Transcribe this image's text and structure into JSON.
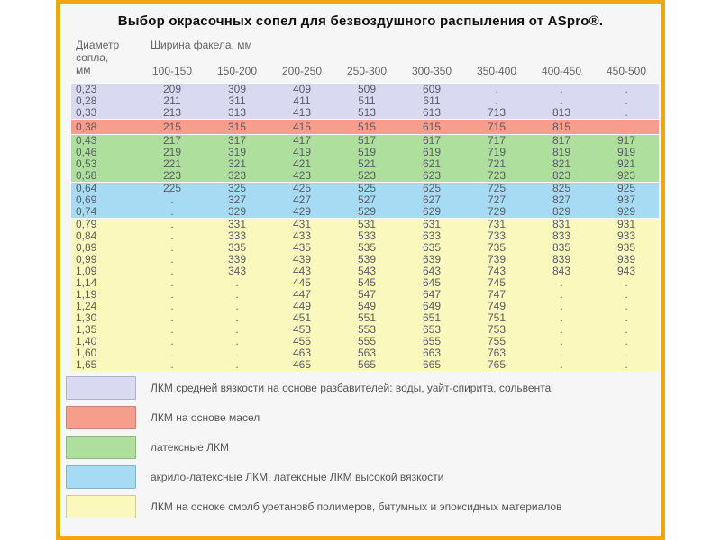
{
  "title": "Выбор окрасочных сопел для безвоздушного распыления от ASpro®.",
  "table": {
    "corner_header": "Диаметр\nсопла,\nмм",
    "group_header": "Ширина факела, мм"
  },
  "chart_data": {
    "type": "table",
    "title": "Выбор окрасочных сопел для безвоздушного распыления от ASpro®.",
    "row_header_label": "Диаметр сопла, мм",
    "column_group_label": "Ширина факела, мм",
    "columns": [
      "100-150",
      "150-200",
      "200-250",
      "250-300",
      "300-350",
      "350-400",
      "400-450",
      "450-500"
    ],
    "sections": [
      {
        "name": "medium-viscosity",
        "color": "#d9daf2",
        "rows": [
          {
            "d": "0,23",
            "v": [
              "209",
              "309",
              "409",
              "509",
              "609",
              ".",
              ".",
              "."
            ]
          },
          {
            "d": "0,28",
            "v": [
              "211",
              "311",
              "411",
              "511",
              "611",
              ".",
              ".",
              "."
            ]
          },
          {
            "d": "0,33",
            "v": [
              "213",
              "313",
              "413",
              "513",
              "613",
              "713",
              "813",
              "."
            ]
          }
        ]
      },
      {
        "name": "oil-based",
        "color": "#f79d8c",
        "rows": [
          {
            "d": "0,38",
            "v": [
              "215",
              "315",
              "415",
              "515",
              "615",
              "715",
              "815",
              ""
            ]
          }
        ]
      },
      {
        "name": "latex",
        "color": "#aedf9c",
        "rows": [
          {
            "d": "0,43",
            "v": [
              "217",
              "317",
              "417",
              "517",
              "617",
              "717",
              "817",
              "917"
            ]
          },
          {
            "d": "0,46",
            "v": [
              "219",
              "319",
              "419",
              "519",
              "619",
              "719",
              "819",
              "919"
            ]
          },
          {
            "d": "0,53",
            "v": [
              "221",
              "321",
              "421",
              "521",
              "621",
              "721",
              "821",
              "921"
            ]
          },
          {
            "d": "0,58",
            "v": [
              "223",
              "323",
              "423",
              "523",
              "623",
              "723",
              "823",
              "923"
            ]
          }
        ]
      },
      {
        "name": "acrylic-latex",
        "color": "#a6dbf3",
        "rows": [
          {
            "d": "0,64",
            "v": [
              "225",
              "325",
              "425",
              "525",
              "625",
              "725",
              "825",
              "925"
            ]
          },
          {
            "d": "0,69",
            "v": [
              ".",
              "327",
              "427",
              "527",
              "627",
              "727",
              "827",
              "937"
            ]
          },
          {
            "d": "0,74",
            "v": [
              ".",
              "329",
              "429",
              "529",
              "629",
              "729",
              "829",
              "929"
            ]
          }
        ]
      },
      {
        "name": "resin-based",
        "color": "#fbf8bd",
        "rows": [
          {
            "d": "0,79",
            "v": [
              ".",
              "331",
              "431",
              "531",
              "631",
              "731",
              "831",
              "931"
            ]
          },
          {
            "d": "0,84",
            "v": [
              ".",
              "333",
              "433",
              "533",
              "633",
              "733",
              "833",
              "933"
            ]
          },
          {
            "d": "0,89",
            "v": [
              ".",
              "335",
              "435",
              "535",
              "635",
              "735",
              "835",
              "935"
            ]
          },
          {
            "d": "0,99",
            "v": [
              ".",
              "339",
              "439",
              "539",
              "639",
              "739",
              "839",
              "939"
            ]
          },
          {
            "d": "1,09",
            "v": [
              ".",
              "343",
              "443",
              "543",
              "643",
              "743",
              "843",
              "943"
            ]
          },
          {
            "d": "1,14",
            "v": [
              ".",
              ".",
              "445",
              "545",
              "645",
              "745",
              ".",
              "."
            ]
          },
          {
            "d": "1,19",
            "v": [
              ".",
              ".",
              "447",
              "547",
              "647",
              "747",
              ".",
              "."
            ]
          },
          {
            "d": "1,24",
            "v": [
              ".",
              ".",
              "449",
              "549",
              "649",
              "749",
              ".",
              "."
            ]
          },
          {
            "d": "1,30",
            "v": [
              ".",
              ".",
              "451",
              "551",
              "651",
              "751",
              ".",
              "."
            ]
          },
          {
            "d": "1,35",
            "v": [
              ".",
              ".",
              "453",
              "553",
              "653",
              "753",
              ".",
              "."
            ]
          },
          {
            "d": "1,40",
            "v": [
              ".",
              ".",
              "455",
              "555",
              "655",
              "755",
              ".",
              "."
            ]
          },
          {
            "d": "1,60",
            "v": [
              ".",
              ".",
              "463",
              "563",
              "663",
              "763",
              ".",
              "."
            ]
          },
          {
            "d": "1,65",
            "v": [
              ".",
              ".",
              "465",
              "565",
              "665",
              "765",
              ".",
              "."
            ]
          }
        ]
      }
    ]
  },
  "legend": [
    {
      "color": "#d9daf2",
      "label": "ЛКМ средней вязкости на основе разбавителей: воды, уайт-спирита, сольвента"
    },
    {
      "color": "#f79d8c",
      "label": "ЛКМ на основе масел"
    },
    {
      "color": "#aedf9c",
      "label": "латексные ЛКМ"
    },
    {
      "color": "#a6dbf3",
      "label": "акрило-латексные ЛКМ, латексные ЛКМ высокой вязкости"
    },
    {
      "color": "#fbf8bd",
      "label": "ЛКМ на осноке смолб уретановб полимеров, битумных и эпоксидных материалов"
    }
  ],
  "colors": {
    "frame": "#f2a60d",
    "content_background": "#f6f6f6",
    "value_text": "#5b5c68",
    "header_text": "#666666"
  }
}
